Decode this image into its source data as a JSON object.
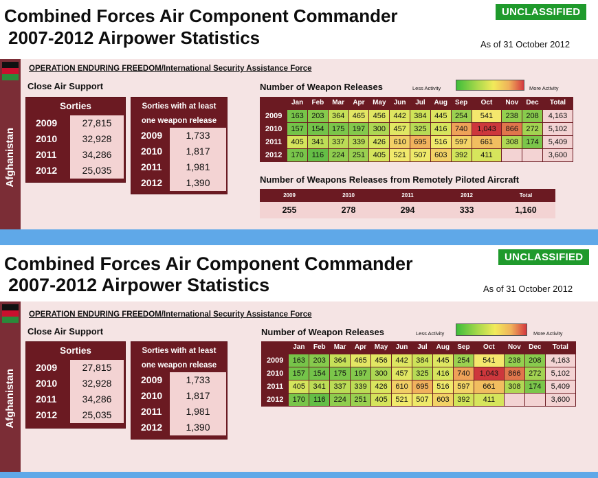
{
  "header": {
    "title_line1": "Combined Forces Air Component Commander",
    "title_line2": "2007-2012 Airpower Statistics",
    "classification": "UNCLASSIFIED",
    "as_of": "As of 31 October 2012"
  },
  "country": "Afghanistan",
  "operation": "OPERATION ENDURING FREEDOM/International Security Assistance Force",
  "close_air_support": {
    "label": "Close Air Support",
    "sorties_header": "Sorties",
    "sorties": [
      {
        "year": "2009",
        "value": "27,815"
      },
      {
        "year": "2010",
        "value": "32,928"
      },
      {
        "year": "2011",
        "value": "34,286"
      },
      {
        "year": "2012",
        "value": "25,035"
      }
    ],
    "weapon_sorties_header_1": "Sorties with at least",
    "weapon_sorties_header_2": "one weapon release",
    "weapon_sorties": [
      {
        "year": "2009",
        "value": "1,733"
      },
      {
        "year": "2010",
        "value": "1,817"
      },
      {
        "year": "2011",
        "value": "1,981"
      },
      {
        "year": "2012",
        "value": "1,390"
      }
    ]
  },
  "weapon_releases": {
    "label": "Number of Weapon Releases",
    "legend_less": "Less Activity",
    "legend_more": "More Activity",
    "columns": [
      "",
      "Jan",
      "Feb",
      "Mar",
      "Apr",
      "May",
      "Jun",
      "Jul",
      "Aug",
      "Sep",
      "Oct",
      "Nov",
      "Dec",
      "Total"
    ],
    "rows": [
      {
        "year": "2009",
        "values": [
          "163",
          "203",
          "364",
          "465",
          "456",
          "442",
          "384",
          "445",
          "254",
          "541",
          "238",
          "208"
        ],
        "total": "4,163"
      },
      {
        "year": "2010",
        "values": [
          "157",
          "154",
          "175",
          "197",
          "300",
          "457",
          "325",
          "416",
          "740",
          "1,043",
          "866",
          "272"
        ],
        "total": "5,102"
      },
      {
        "year": "2011",
        "values": [
          "405",
          "341",
          "337",
          "339",
          "426",
          "610",
          "695",
          "516",
          "597",
          "661",
          "308",
          "174"
        ],
        "total": "5,409"
      },
      {
        "year": "2012",
        "values": [
          "170",
          "116",
          "224",
          "251",
          "405",
          "521",
          "507",
          "603",
          "392",
          "411",
          "",
          ""
        ],
        "total": "3,600"
      }
    ]
  },
  "rpa": {
    "label": "Number of Weapons Releases from Remotely Piloted Aircraft",
    "headers": [
      "2009",
      "2010",
      "2011",
      "2012",
      "Total"
    ],
    "values": [
      "255",
      "278",
      "294",
      "333",
      "1,160"
    ]
  },
  "colors": {
    "maroon": "#6b1a22",
    "light_pink": "#f3d3d3",
    "unclassified_green": "#1f9a2c",
    "separator_blue": "#5fa8e8"
  }
}
